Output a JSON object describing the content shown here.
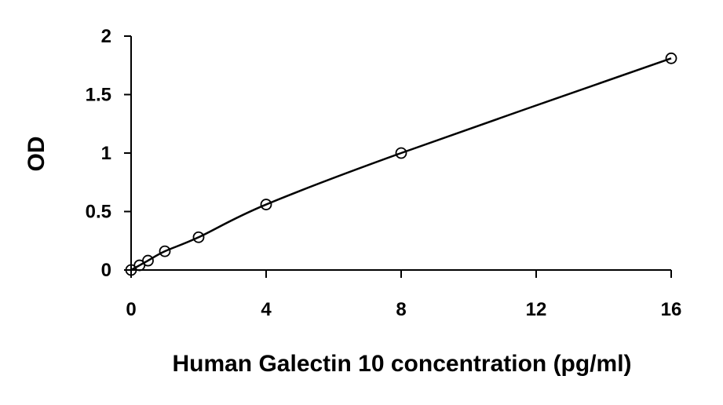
{
  "chart_data": {
    "type": "scatter",
    "title": "",
    "xlabel": "Human Galectin 10 concentration (pg/ml)",
    "ylabel": "OD",
    "xlim": [
      0,
      16
    ],
    "ylim": [
      0,
      2
    ],
    "xticks": [
      0,
      4,
      8,
      12,
      16
    ],
    "xtick_labels": [
      "0",
      "4",
      "8",
      "12",
      "16"
    ],
    "yticks": [
      0,
      0.5,
      1,
      1.5,
      2
    ],
    "ytick_labels": [
      "0",
      "0.5",
      "1",
      "1.5",
      "2"
    ],
    "grid": false,
    "legend": "none",
    "series": [
      {
        "x": [
          0,
          0.25,
          0.5,
          1,
          2,
          4,
          8,
          16
        ],
        "y": [
          0.0,
          0.04,
          0.08,
          0.16,
          0.28,
          0.56,
          1.0,
          1.81
        ],
        "marker": "open-circle",
        "trendline": "smooth",
        "color": "#000000"
      }
    ]
  }
}
